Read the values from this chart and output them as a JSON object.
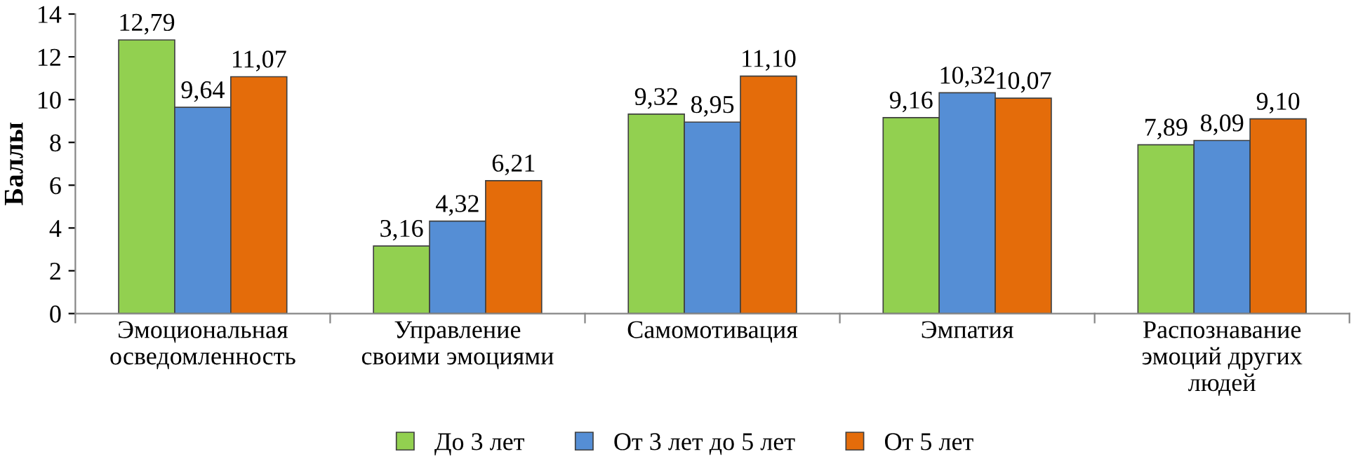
{
  "chart_data": {
    "type": "bar",
    "ylabel": "Баллы",
    "categories": [
      "Эмоциональная\nосведомленность",
      "Управление\nсвоими эмоциями",
      "Самомотивация",
      "Эмпатия",
      "Распознавание\nэмоций других\nлюдей"
    ],
    "series": [
      {
        "name": "До 3 лет",
        "color": "#92d050",
        "values": [
          12.79,
          3.16,
          9.32,
          9.16,
          7.89
        ],
        "value_labels": [
          "12,79",
          "3,16",
          "9,32",
          "9,16",
          "7,89"
        ]
      },
      {
        "name": "От 3 лет до 5 лет",
        "color": "#558ed5",
        "values": [
          9.64,
          4.32,
          8.95,
          10.32,
          8.09
        ],
        "value_labels": [
          "9,64",
          "4,32",
          "8,95",
          "10,32",
          "8,09"
        ]
      },
      {
        "name": "От 5 лет",
        "color": "#e46c0a",
        "values": [
          11.07,
          6.21,
          11.1,
          10.07,
          9.1
        ],
        "value_labels": [
          "11,07",
          "6,21",
          "11,10",
          "10,07",
          "9,10"
        ]
      }
    ],
    "ylim": [
      0,
      14
    ],
    "yticks": [
      0,
      2,
      4,
      6,
      8,
      10,
      12,
      14
    ],
    "grid": false,
    "legend": "bottom"
  }
}
